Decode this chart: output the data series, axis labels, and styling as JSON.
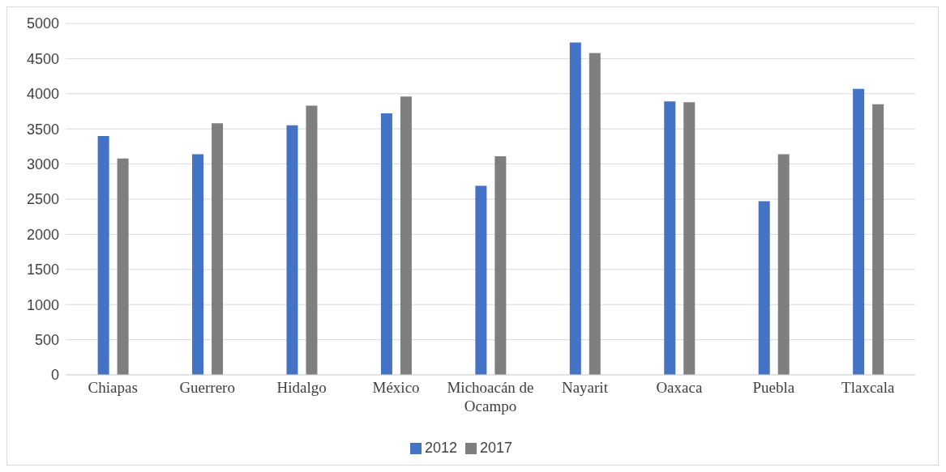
{
  "chart_data": {
    "type": "bar",
    "categories": [
      "Chiapas",
      "Guerrero",
      "Hidalgo",
      "México",
      "Michoacán de Ocampo",
      "Nayarit",
      "Oaxaca",
      "Puebla",
      "Tlaxcala"
    ],
    "series": [
      {
        "name": "2012",
        "color": "#4472c4",
        "values": [
          3400,
          3140,
          3550,
          3720,
          2690,
          4730,
          3890,
          2470,
          4070
        ]
      },
      {
        "name": "2017",
        "color": "#7f7f7f",
        "values": [
          3080,
          3580,
          3830,
          3960,
          3110,
          4580,
          3880,
          3140,
          3850
        ]
      }
    ],
    "ylim": [
      0,
      5000
    ],
    "yticks": [
      0,
      500,
      1000,
      1500,
      2000,
      2500,
      3000,
      3500,
      4000,
      4500,
      5000
    ],
    "grid": "y",
    "legend": "bottom"
  }
}
